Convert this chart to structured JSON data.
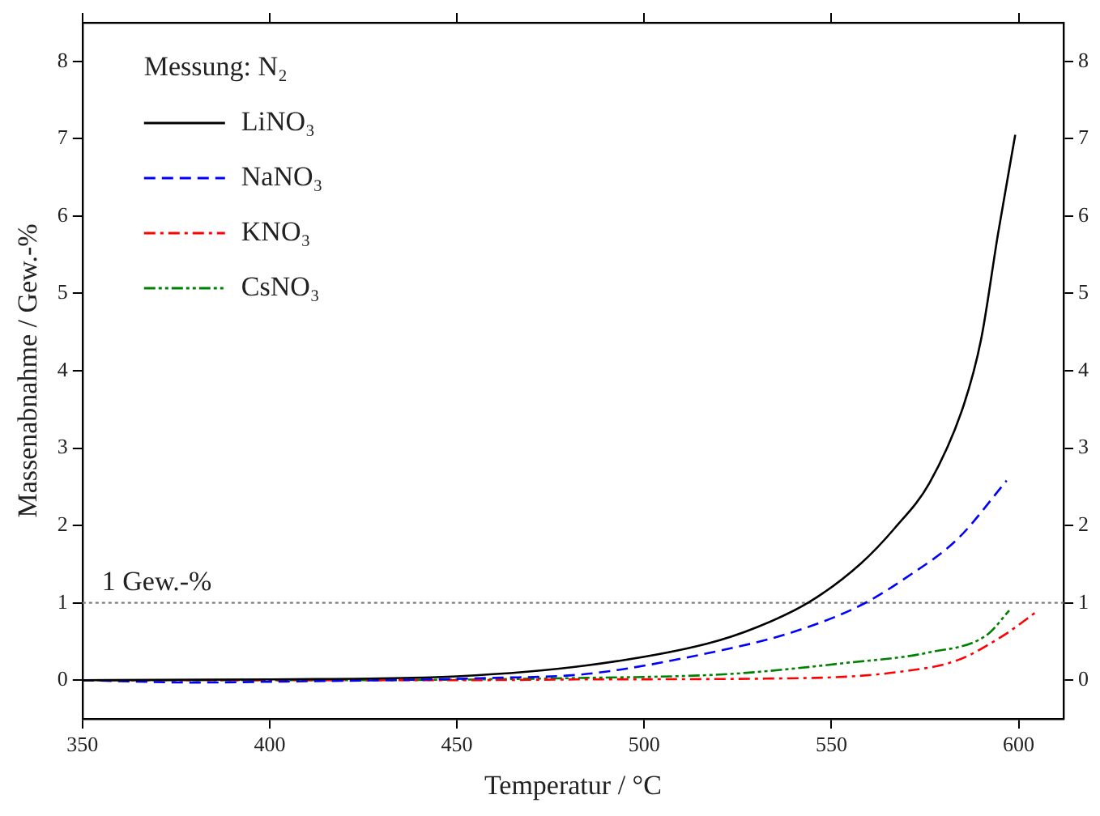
{
  "chart_data": {
    "type": "line",
    "xlabel": "Temperatur / °C",
    "ylabel": "Massenabnahme / Gew.-%",
    "legend_title": "Messung: N₂",
    "legend": "top left",
    "grid": false,
    "marker": "none",
    "xlim": [
      350,
      612
    ],
    "xticks": [
      350,
      400,
      450,
      500,
      550,
      600
    ],
    "ylim": [
      -0.5,
      8.5
    ],
    "yticks": [
      0,
      1,
      2,
      3,
      4,
      5,
      6,
      7,
      8
    ],
    "y2lim": [
      -0.5,
      8.5
    ],
    "y2ticks": [
      0,
      1,
      2,
      3,
      4,
      5,
      6,
      7,
      8
    ],
    "ref_lines": [
      {
        "axis": "y",
        "value": 1,
        "label": "1 Gew.-%",
        "color": "#808080",
        "line_style": "dotted"
      }
    ],
    "series": [
      {
        "name": "LiNO₃",
        "color": "#000000",
        "line_style": "solid",
        "x": [
          350,
          400,
          450,
          484.6,
          516.7,
          530.4,
          544.1,
          557.9,
          567,
          576.2,
          585.3,
          590,
          594.5,
          599.1
        ],
        "values": [
          0,
          0.01,
          0.05,
          0.19,
          0.47,
          0.69,
          1.01,
          1.51,
          1.97,
          2.55,
          3.55,
          4.41,
          5.77,
          7.05
        ]
      },
      {
        "name": "NaNO₃",
        "color": "#0000ff",
        "line_style": "dashed",
        "x": [
          350,
          380,
          400,
          460,
          484.6,
          515.1,
          539.6,
          557.9,
          570.1,
          583.8,
          596.8
        ],
        "values": [
          0,
          -0.03,
          -0.02,
          0.03,
          0.08,
          0.33,
          0.62,
          0.97,
          1.33,
          1.83,
          2.58
        ]
      },
      {
        "name": "KNO₃",
        "color": "#ff0000",
        "line_style": "dashdot",
        "x": [
          350,
          450,
          484.6,
          545.6,
          568.5,
          583.8,
          596,
          605.2
        ],
        "values": [
          0,
          0,
          0.01,
          0.03,
          0.11,
          0.26,
          0.58,
          0.9
        ]
      },
      {
        "name": "CsNO₃",
        "color": "#008000",
        "line_style": "dashdotdot",
        "x": [
          350,
          420,
          484.6,
          522.7,
          553.3,
          576.2,
          591.4,
          597.5
        ],
        "values": [
          0,
          0,
          0.03,
          0.08,
          0.22,
          0.36,
          0.58,
          0.9
        ]
      }
    ]
  }
}
